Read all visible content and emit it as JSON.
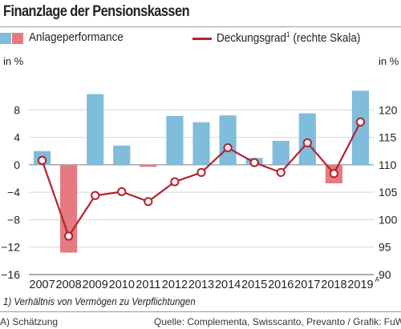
{
  "header": {
    "title": "Finanzlage der Pensionskassen"
  },
  "legend": {
    "bar_label": "Anlageperformance",
    "line_label": "Deckungsgrad",
    "line_sup": "1",
    "line_suffix": "(rechte Skala)"
  },
  "colors": {
    "bar_pos": "#80bcdc",
    "bar_neg": "#e57b80",
    "line": "#b5212e"
  },
  "footer": {
    "footnote": "1) Verhältnis von Vermögen zu Verpflichtungen",
    "estimate": "A) Schätzung",
    "source": "Quelle: Complementa, Swisscanto, Prevanto / Grafik: FuW, sp"
  },
  "chart_data": {
    "type": "bar",
    "categories": [
      "2007",
      "2008",
      "2009",
      "2010",
      "2011",
      "2012",
      "2013",
      "2014",
      "2015",
      "2016",
      "2017",
      "2018",
      "2019"
    ],
    "category_suffix": {
      "2019": "A"
    },
    "series": [
      {
        "name": "Anlageperformance",
        "type": "bar",
        "axis": "left",
        "values": [
          2.0,
          -12.8,
          10.3,
          2.8,
          -0.3,
          7.1,
          6.2,
          7.2,
          1.0,
          3.5,
          7.5,
          -2.7,
          10.8
        ]
      },
      {
        "name": "Deckungsgrad",
        "type": "line",
        "axis": "right",
        "values": [
          110.8,
          97.0,
          104.4,
          105.1,
          103.3,
          106.9,
          108.6,
          113.1,
          110.4,
          108.6,
          114.0,
          108.4,
          117.8
        ]
      }
    ],
    "y_left": {
      "unit": "in %",
      "ylim": [
        -16,
        12
      ],
      "ticks": [
        -16,
        -12,
        -8,
        -4,
        0,
        4,
        8
      ]
    },
    "y_right": {
      "unit": "in %",
      "ylim": [
        90,
        125
      ],
      "ticks": [
        90,
        95,
        100,
        105,
        110,
        115,
        120
      ]
    },
    "tick_labels_left": [
      "−16",
      "−12",
      "−8",
      "−4",
      "0",
      "4",
      "8"
    ],
    "tick_labels_right": [
      "90",
      "95",
      "100",
      "105",
      "110",
      "115",
      "120"
    ],
    "grid": true,
    "legend_position": "top"
  }
}
